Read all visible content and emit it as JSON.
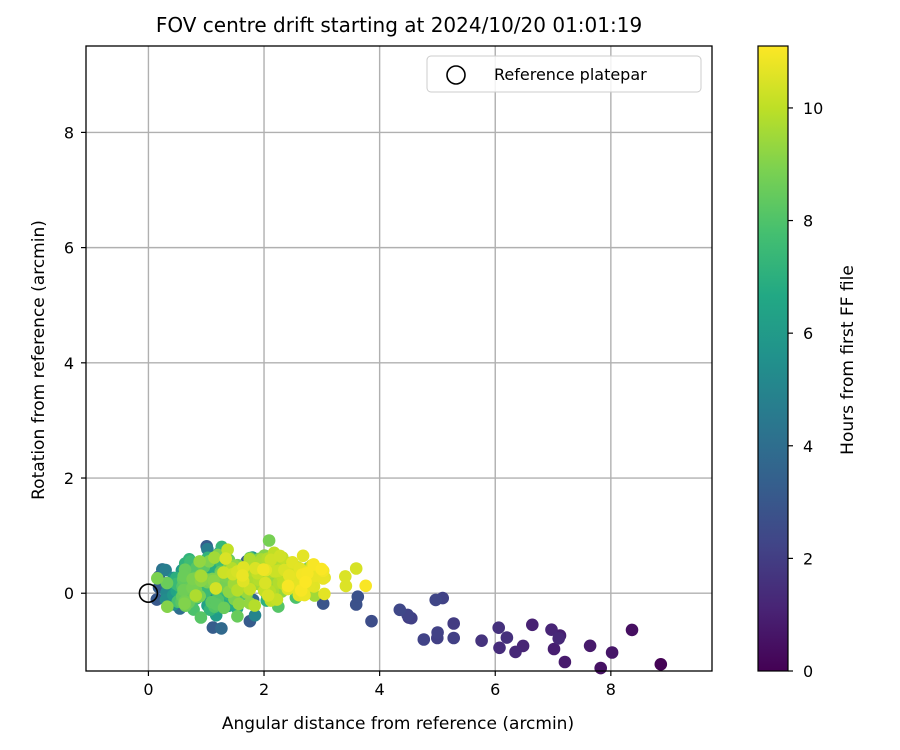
{
  "chart_data": {
    "type": "scatter",
    "title": "FOV centre drift starting at 2024/10/20 01:01:19",
    "xlabel": "Angular distance from reference (arcmin)",
    "ylabel": "Rotation from reference (arcmin)",
    "xlim": [
      -1.08,
      9.75
    ],
    "ylim": [
      -1.35,
      9.5
    ],
    "xticks": [
      0,
      2,
      4,
      6,
      8
    ],
    "yticks": [
      0,
      2,
      4,
      6,
      8
    ],
    "grid": true,
    "colormap": "viridis",
    "colorbar": {
      "label": "Hours from first FF file",
      "range": [
        0,
        11.1
      ],
      "ticks": [
        0,
        2,
        4,
        6,
        8,
        10
      ]
    },
    "legend": {
      "placement": "top-right",
      "entries": [
        "Reference platepar"
      ]
    },
    "reference_point": {
      "x": 0,
      "y": 0,
      "label": "Reference platepar"
    },
    "seed": 7
  }
}
